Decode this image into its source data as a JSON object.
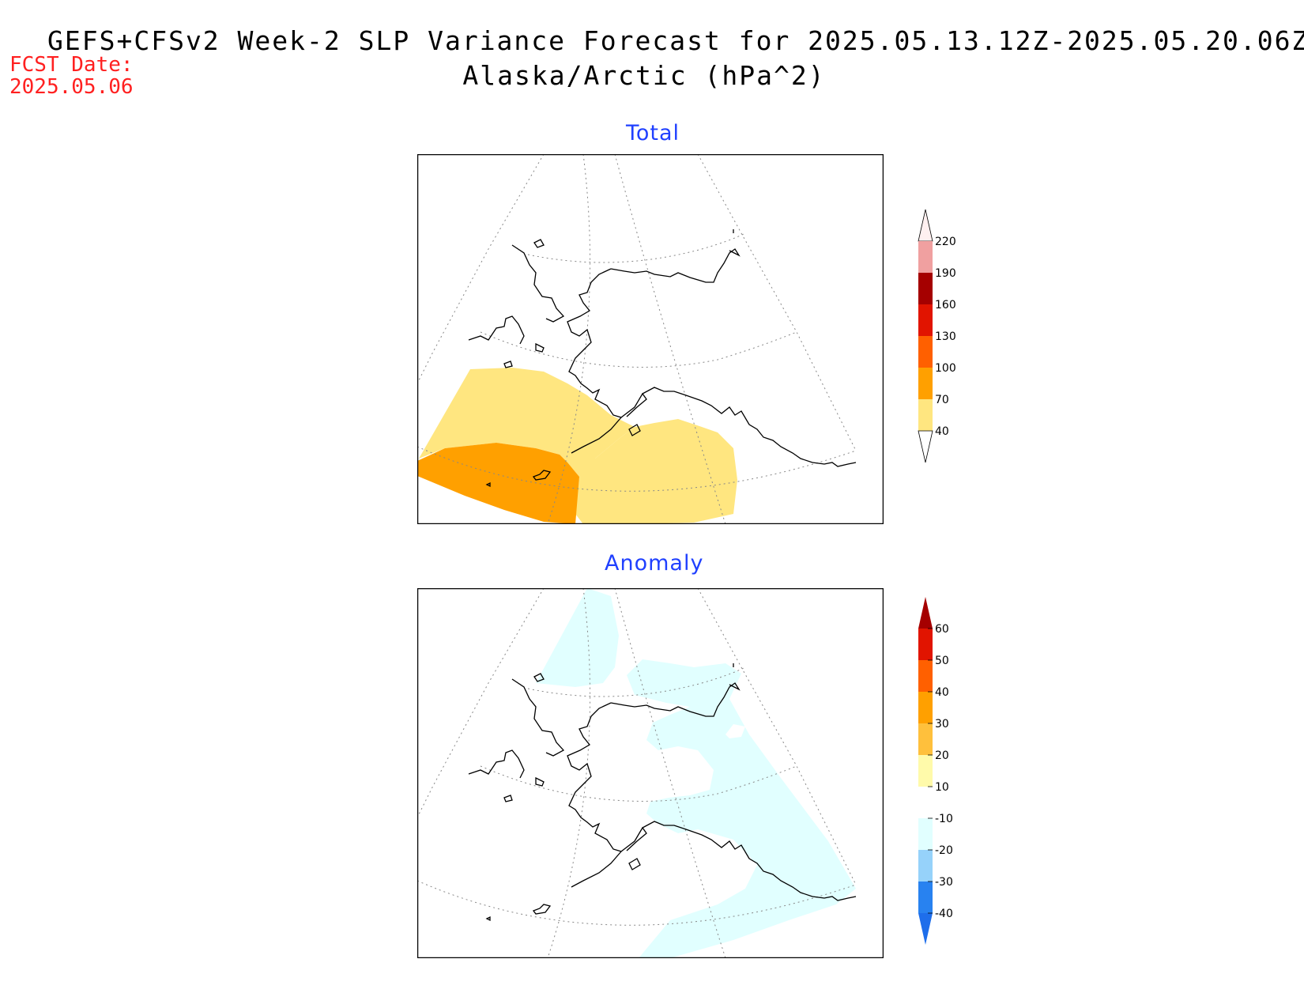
{
  "title": {
    "line1": "GEFS+CFSv2 Week-2 SLP Variance Forecast for 2025.05.13.12Z-2025.05.20.06Z",
    "line2": "Alaska/Arctic (hPa^2)"
  },
  "fcst_date": {
    "label": "FCST Date:",
    "value": "2025.05.06"
  },
  "panels": {
    "total": {
      "title": "Total"
    },
    "anomaly": {
      "title": "Anomaly"
    }
  },
  "colorbars": {
    "total": {
      "levels": [
        "40",
        "70",
        "100",
        "130",
        "160",
        "190",
        "220"
      ],
      "colors": [
        "#ffe680",
        "#ffa000",
        "#ff6000",
        "#e11400",
        "#a50000",
        "#f0a0a0",
        "#fff0f0"
      ],
      "below_color": "#ffffff"
    },
    "anomaly": {
      "levels": [
        "-40",
        "-30",
        "-20",
        "-10",
        "10",
        "20",
        "30",
        "40",
        "50",
        "60"
      ],
      "colors_below": [
        "#1e6eeb",
        "#2882f0",
        "#96d2fa",
        "#e1ffff"
      ],
      "colors_above": [
        "#ffffff",
        "#fffaaa",
        "#ffc03c",
        "#ffa000",
        "#ff6000",
        "#e11400",
        "#a50000"
      ]
    }
  },
  "fields": {
    "total_shading": [
      {
        "name": "40-70 hPa^2",
        "color": "#ffe680"
      },
      {
        "name": "70-100 hPa^2",
        "color": "#ffa000"
      }
    ],
    "anomaly_shading": [
      {
        "name": "-20 to -10 hPa^2",
        "color": "#e1ffff"
      }
    ]
  }
}
